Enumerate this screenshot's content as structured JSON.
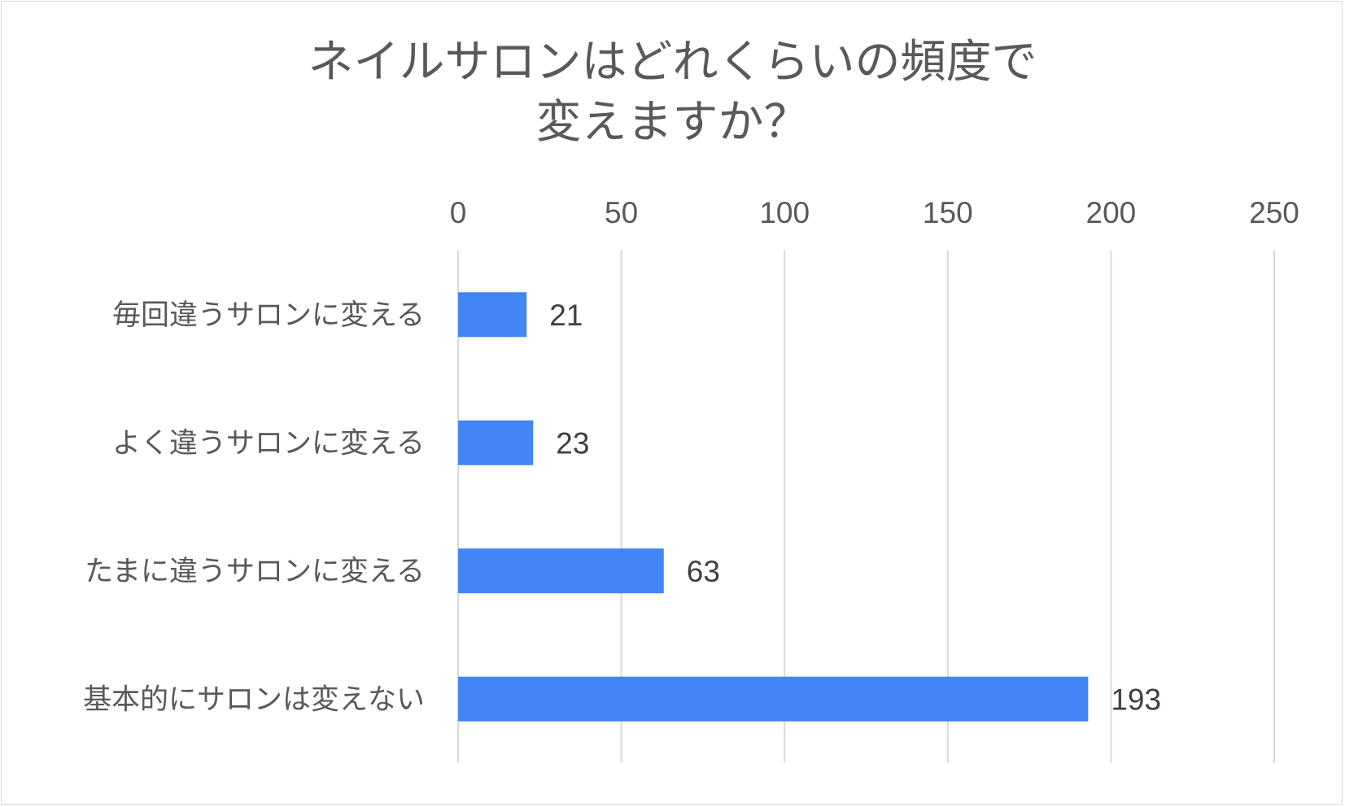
{
  "chart_data": {
    "type": "bar",
    "orientation": "horizontal",
    "title_lines": [
      "ネイルサロンはどれくらいの頻度で",
      "変えますか？"
    ],
    "categories": [
      "毎回違うサロンに変える",
      "よく違うサロンに変える",
      "たまに違うサロンに変える",
      "基本的にサロンは変えない"
    ],
    "values": [
      21,
      23,
      63,
      193
    ],
    "xlim": [
      0,
      250
    ],
    "ticks": [
      0,
      50,
      100,
      150,
      200,
      250
    ],
    "x_axis_position": "top",
    "grid": true,
    "data_labels": true,
    "colors": {
      "bar": "#4285f4",
      "grid": "#d9d9d9",
      "text": "#595959",
      "data_label": "#404040"
    }
  }
}
